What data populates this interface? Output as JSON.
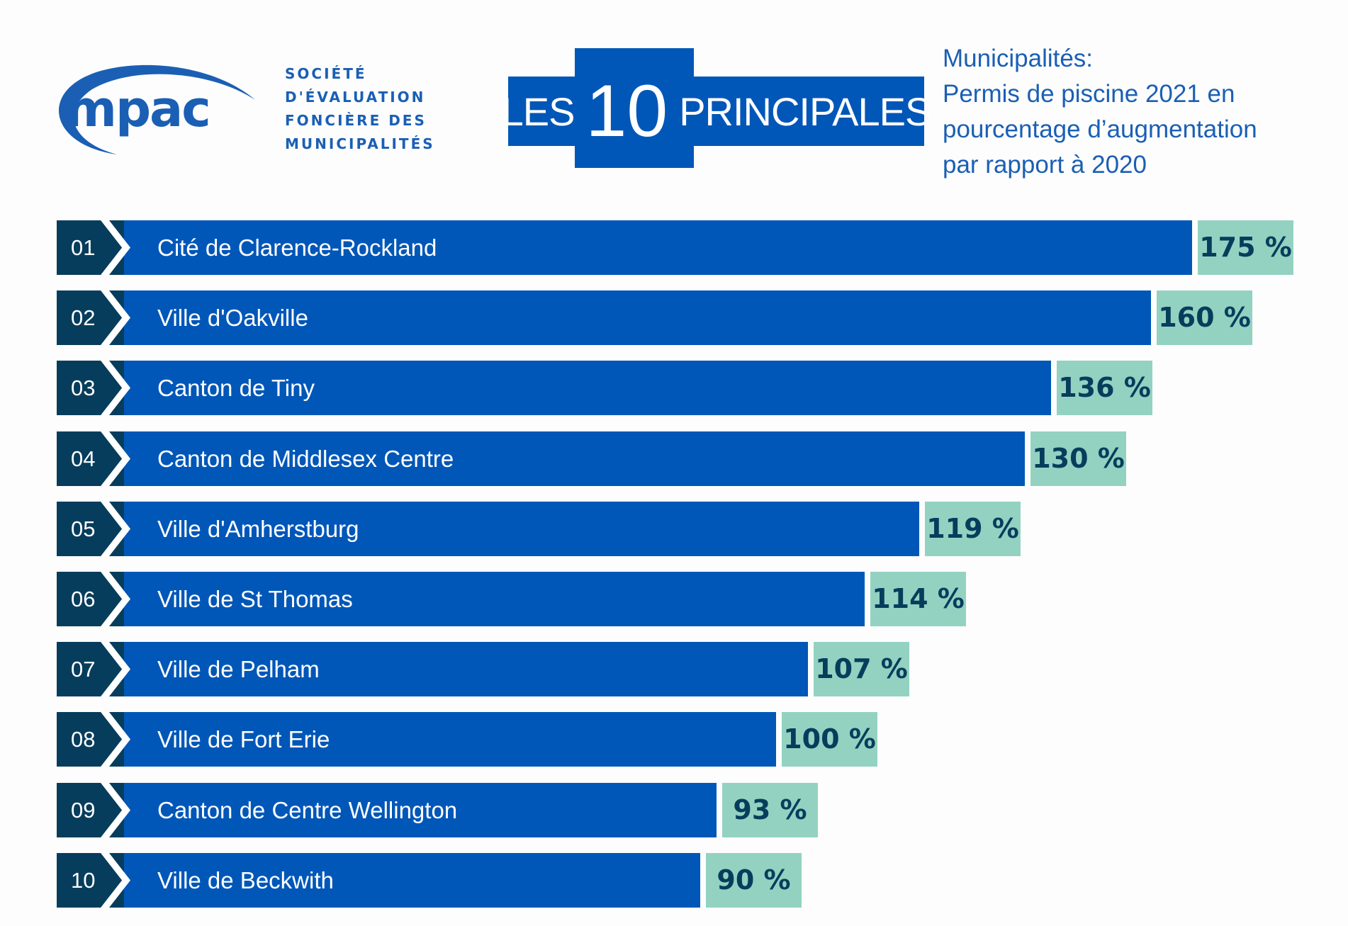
{
  "logo": {
    "text": "mpac",
    "color": "#1a5fb4"
  },
  "organization": {
    "lines": [
      "SOCIÉTÉ",
      "D'ÉVALUATION",
      "FONCIÈRE DES",
      "MUNICIPALITÉS"
    ]
  },
  "headline": {
    "prefix": "LES",
    "number": "10",
    "suffix": "PRINCIPALES"
  },
  "subtitle": {
    "lines": [
      "Municipalités:",
      "Permis de piscine 2021 en",
      "pourcentage d’augmentation",
      "par rapport à 2020"
    ]
  },
  "colors": {
    "bar": "#0057b8",
    "rank": "#073d5c",
    "value_box": "#93d2c1",
    "value_text": "#073d5c",
    "title": "#1a5fb4"
  },
  "chart_data": {
    "type": "bar",
    "orientation": "horizontal",
    "ranks": [
      "01",
      "02",
      "03",
      "04",
      "05",
      "06",
      "07",
      "08",
      "09",
      "10"
    ],
    "categories": [
      "Cité de Clarence-Rockland",
      "Ville d'Oakville",
      "Canton de Tiny",
      "Canton de Middlesex Centre",
      "Ville d'Amherstburg",
      "Ville de St Thomas",
      "Ville de Pelham",
      "Ville de Fort Erie",
      "Canton de Centre Wellington",
      "Ville de Beckwith"
    ],
    "values": [
      175,
      160,
      136,
      130,
      119,
      114,
      107,
      100,
      93,
      90
    ],
    "value_labels": [
      "175 %",
      "160 %",
      "136 %",
      "130 %",
      "119 %",
      "114 %",
      "107 %",
      "100 %",
      "93 %",
      "90 %"
    ],
    "unit": "%",
    "grid": false,
    "legend": "none"
  }
}
